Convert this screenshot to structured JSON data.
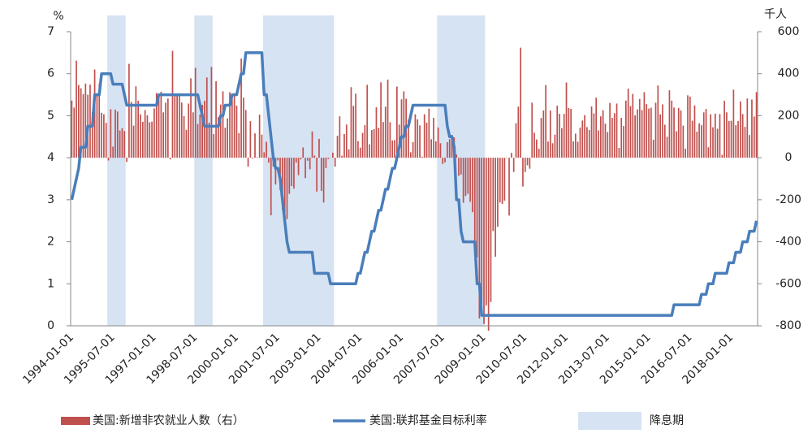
{
  "chart_data": {
    "type": "bar-line",
    "y_unit": "%",
    "y2_unit": "千人",
    "ylim": [
      0,
      7
    ],
    "yticks": [
      0,
      1,
      2,
      3,
      4,
      5,
      6,
      7
    ],
    "y2lim": [
      -800,
      600
    ],
    "y2ticks": [
      -800,
      -600,
      -400,
      -200,
      0,
      200,
      400,
      600
    ],
    "categories": [
      "1994-01-01",
      null,
      null,
      null,
      null,
      null,
      null,
      null,
      null,
      null,
      null,
      null,
      null,
      null,
      null,
      null,
      null,
      null,
      "1995-07-01",
      null,
      null,
      null,
      null,
      null,
      null,
      null,
      null,
      null,
      null,
      null,
      null,
      null,
      null,
      null,
      null,
      null,
      "1997-01-01",
      null,
      null,
      null,
      null,
      null,
      null,
      null,
      null,
      null,
      null,
      null,
      null,
      null,
      null,
      null,
      null,
      null,
      "1998-07-01",
      null,
      null,
      null,
      null,
      null,
      null,
      null,
      null,
      null,
      null,
      null,
      null,
      null,
      null,
      null,
      null,
      null,
      "2000-01-01",
      null,
      null,
      null,
      null,
      null,
      null,
      null,
      null,
      null,
      null,
      null,
      null,
      null,
      null,
      null,
      null,
      null,
      "2001-07-01",
      null,
      null,
      null,
      null,
      null,
      null,
      null,
      null,
      null,
      null,
      null,
      null,
      null,
      null,
      null,
      null,
      null,
      "2003-01-01",
      null,
      null,
      null,
      null,
      null,
      null,
      null,
      null,
      null,
      null,
      null,
      null,
      null,
      null,
      null,
      null,
      null,
      "2004-07-01",
      null,
      null,
      null,
      null,
      null,
      null,
      null,
      null,
      null,
      null,
      null,
      null,
      null,
      null,
      null,
      null,
      null,
      "2006-01-01",
      null,
      null,
      null,
      null,
      null,
      null,
      null,
      null,
      null,
      null,
      null,
      null,
      null,
      null,
      null,
      null,
      null,
      "2007-07-01",
      null,
      null,
      null,
      null,
      null,
      null,
      null,
      null,
      null,
      null,
      null,
      null,
      null,
      null,
      null,
      null,
      null,
      "2009-01-01",
      null,
      null,
      null,
      null,
      null,
      null,
      null,
      null,
      null,
      null,
      null,
      null,
      null,
      null,
      null,
      null,
      null,
      "2010-07-01",
      null,
      null,
      null,
      null,
      null,
      null,
      null,
      null,
      null,
      null,
      null,
      null,
      null,
      null,
      null,
      null,
      null,
      "2012-01-01",
      null,
      null,
      null,
      null,
      null,
      null,
      null,
      null,
      null,
      null,
      null,
      null,
      null,
      null,
      null,
      null,
      null,
      "2013-07-01",
      null,
      null,
      null,
      null,
      null,
      null,
      null,
      null,
      null,
      null,
      null,
      null,
      null,
      null,
      null,
      null,
      null,
      "2015-01-01",
      null,
      null,
      null,
      null,
      null,
      null,
      null,
      null,
      null,
      null,
      null,
      null,
      null,
      null,
      null,
      null,
      null,
      "2016-07-01",
      null,
      null,
      null,
      null,
      null,
      null,
      null,
      null,
      null,
      null,
      null,
      null,
      null,
      null,
      null,
      null,
      null,
      "2018-01-01",
      null,
      null,
      null,
      null,
      null,
      null,
      null,
      null,
      null,
      null,
      null
    ],
    "shaded": {
      "name": "降息期",
      "color": "#d6e3f3",
      "ranges": [
        [
          16,
          23
        ],
        [
          54,
          61
        ],
        [
          84,
          114
        ],
        [
          160,
          180
        ]
      ]
    },
    "series": [
      {
        "name": "美国:新增非农就业人数（右）",
        "kind": "bar",
        "axis": "y2",
        "color": "#c0504d",
        "values": [
          272,
          239,
          462,
          346,
          331,
          303,
          353,
          300,
          348,
          216,
          420,
          307,
          352,
          214,
          207,
          166,
          -13,
          231,
          53,
          229,
          220,
          130,
          141,
          127,
          -20,
          447,
          266,
          153,
          340,
          271,
          207,
          171,
          227,
          202,
          169,
          172,
          235,
          308,
          287,
          314,
          216,
          262,
          282,
          -8,
          509,
          303,
          298,
          299,
          263,
          198,
          133,
          258,
          378,
          216,
          428,
          161,
          205,
          252,
          271,
          382,
          167,
          432,
          113,
          364,
          193,
          253,
          316,
          143,
          187,
          312,
          298,
          307,
          248,
          117,
          472,
          286,
          227,
          -42,
          174,
          -4,
          116,
          3,
          205,
          110,
          26,
          76,
          -23,
          -274,
          -42,
          -127,
          -13,
          -154,
          -247,
          -325,
          -292,
          -172,
          -135,
          -147,
          -23,
          -83,
          -8,
          49,
          -97,
          -14,
          -55,
          125,
          10,
          -161,
          90,
          -158,
          -213,
          -49,
          -6,
          -1,
          24,
          -42,
          104,
          197,
          10,
          113,
          158,
          40,
          336,
          247,
          305,
          79,
          48,
          118,
          155,
          347,
          64,
          132,
          136,
          240,
          142,
          359,
          170,
          243,
          372,
          169,
          82,
          84,
          339,
          158,
          278,
          316,
          281,
          181,
          26,
          74,
          207,
          183,
          154,
          5,
          207,
          167,
          234,
          88,
          190,
          78,
          144,
          69,
          -30,
          -22,
          74,
          88,
          109,
          97,
          15,
          -86,
          -80,
          -214,
          -182,
          -172,
          -210,
          -259,
          -452,
          -474,
          -765,
          -697,
          -791,
          -703,
          -823,
          -687,
          -349,
          -471,
          -329,
          -213,
          -220,
          -204,
          -2,
          -275,
          23,
          -68,
          164,
          243,
          524,
          -137,
          -68,
          -36,
          -52,
          262,
          119,
          87,
          43,
          189,
          225,
          346,
          77,
          225,
          69,
          110,
          248,
          209,
          141,
          209,
          358,
          237,
          233,
          78,
          115,
          76,
          143,
          177,
          203,
          146,
          132,
          244,
          211,
          286,
          130,
          197,
          226,
          162,
          122,
          261,
          190,
          212,
          258,
          47,
          190,
          151,
          272,
          329,
          246,
          304,
          202,
          230,
          280,
          227,
          312,
          255,
          234,
          238,
          86,
          262,
          344,
          206,
          254,
          157,
          100,
          321,
          272,
          239,
          126,
          237,
          225,
          153,
          43,
          297,
          291,
          176,
          249,
          124,
          164,
          155,
          216,
          232,
          50,
          207,
          145,
          210,
          138,
          208,
          14,
          271,
          216,
          175,
          176,
          324,
          155,
          175,
          268,
          208,
          147,
          282,
          108,
          277,
          196,
          312
        ]
      },
      {
        "name": "美国:联邦基金目标利率",
        "kind": "line",
        "axis": "y",
        "color": "#4a7ebb",
        "values": [
          3,
          3.25,
          3.5,
          3.75,
          4.25,
          4.25,
          4.25,
          4.75,
          4.75,
          4.75,
          5.5,
          5.5,
          5.5,
          6,
          6,
          6,
          6,
          6,
          5.75,
          5.75,
          5.75,
          5.75,
          5.75,
          5.5,
          5.25,
          5.25,
          5.25,
          5.25,
          5.25,
          5.25,
          5.25,
          5.25,
          5.25,
          5.25,
          5.25,
          5.25,
          5.25,
          5.25,
          5.5,
          5.5,
          5.5,
          5.5,
          5.5,
          5.5,
          5.5,
          5.5,
          5.5,
          5.5,
          5.5,
          5.5,
          5.5,
          5.5,
          5.5,
          5.5,
          5.5,
          5.5,
          5.25,
          5,
          4.75,
          4.75,
          4.75,
          4.75,
          4.75,
          4.75,
          4.75,
          5,
          5,
          5.25,
          5.25,
          5.25,
          5.5,
          5.5,
          5.5,
          5.75,
          6,
          6,
          6.5,
          6.5,
          6.5,
          6.5,
          6.5,
          6.5,
          6.5,
          6.5,
          5.5,
          5.5,
          5,
          4.5,
          4,
          3.75,
          3.75,
          3.5,
          3,
          2.5,
          2,
          1.75,
          1.75,
          1.75,
          1.75,
          1.75,
          1.75,
          1.75,
          1.75,
          1.75,
          1.75,
          1.75,
          1.25,
          1.25,
          1.25,
          1.25,
          1.25,
          1.25,
          1.25,
          1,
          1,
          1,
          1,
          1,
          1,
          1,
          1,
          1,
          1,
          1,
          1,
          1.25,
          1.25,
          1.5,
          1.75,
          1.75,
          2,
          2.25,
          2.25,
          2.5,
          2.75,
          2.75,
          3,
          3.25,
          3.25,
          3.5,
          3.75,
          3.75,
          4,
          4.25,
          4.5,
          4.5,
          4.75,
          4.75,
          5,
          5.25,
          5.25,
          5.25,
          5.25,
          5.25,
          5.25,
          5.25,
          5.25,
          5.25,
          5.25,
          5.25,
          5.25,
          5.25,
          5.25,
          5.25,
          4.75,
          4.5,
          4.5,
          4.25,
          3,
          3,
          2.25,
          2,
          2,
          2,
          2,
          2,
          2,
          1,
          1,
          0.25,
          0.25,
          0.25,
          0.25,
          0.25,
          0.25,
          0.25,
          0.25,
          0.25,
          0.25,
          0.25,
          0.25,
          0.25,
          0.25,
          0.25,
          0.25,
          0.25,
          0.25,
          0.25,
          0.25,
          0.25,
          0.25,
          0.25,
          0.25,
          0.25,
          0.25,
          0.25,
          0.25,
          0.25,
          0.25,
          0.25,
          0.25,
          0.25,
          0.25,
          0.25,
          0.25,
          0.25,
          0.25,
          0.25,
          0.25,
          0.25,
          0.25,
          0.25,
          0.25,
          0.25,
          0.25,
          0.25,
          0.25,
          0.25,
          0.25,
          0.25,
          0.25,
          0.25,
          0.25,
          0.25,
          0.25,
          0.25,
          0.25,
          0.25,
          0.25,
          0.25,
          0.25,
          0.25,
          0.25,
          0.25,
          0.25,
          0.25,
          0.25,
          0.25,
          0.25,
          0.25,
          0.25,
          0.25,
          0.25,
          0.25,
          0.25,
          0.25,
          0.25,
          0.25,
          0.25,
          0.25,
          0.25,
          0.25,
          0.25,
          0.5,
          0.5,
          0.5,
          0.5,
          0.5,
          0.5,
          0.5,
          0.5,
          0.5,
          0.5,
          0.5,
          0.5,
          0.75,
          0.75,
          0.75,
          1,
          1,
          1,
          1.25,
          1.25,
          1.25,
          1.25,
          1.25,
          1.25,
          1.5,
          1.5,
          1.5,
          1.75,
          1.75,
          1.75,
          2,
          2,
          2,
          2.25,
          2.25,
          2.25,
          2.5
        ]
      }
    ]
  }
}
